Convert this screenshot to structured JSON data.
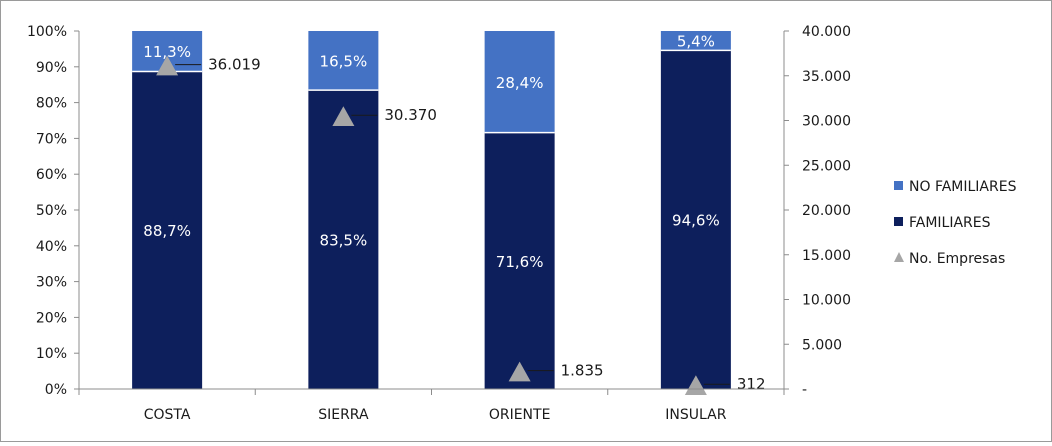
{
  "chart_data": {
    "type": "bar",
    "stacked": true,
    "categories": [
      "COSTA",
      "SIERRA",
      "ORIENTE",
      "INSULAR"
    ],
    "series": [
      {
        "name": "FAMILIARES",
        "values": [
          88.7,
          83.5,
          71.6,
          94.6
        ],
        "labels": [
          "88,7%",
          "83,5%",
          "71,6%",
          "94,6%"
        ],
        "color": "#0d1f5c",
        "axis": "left"
      },
      {
        "name": "NO FAMILIARES",
        "values": [
          11.3,
          16.5,
          28.4,
          5.4
        ],
        "labels": [
          "11,3%",
          "16,5%",
          "28,4%",
          "5,4%"
        ],
        "color": "#4472c4",
        "axis": "left"
      },
      {
        "name": "No. Empresas",
        "type": "scatter",
        "marker": "triangle",
        "values": [
          36019,
          30370,
          1835,
          312
        ],
        "labels": [
          "36.019",
          "30.370",
          "1.835",
          "312"
        ],
        "color": "#a6a6a6",
        "axis": "right"
      }
    ],
    "y_left": {
      "range": [
        0,
        100
      ],
      "ticks": [
        "0%",
        "10%",
        "20%",
        "30%",
        "40%",
        "50%",
        "60%",
        "70%",
        "80%",
        "90%",
        "100%"
      ]
    },
    "y_right": {
      "range": [
        0,
        40000
      ],
      "ticks": [
        "-",
        "5.000",
        "10.000",
        "15.000",
        "20.000",
        "25.000",
        "30.000",
        "35.000",
        "40.000"
      ]
    },
    "legend": {
      "position": "right",
      "order": [
        "NO FAMILIARES",
        "FAMILIARES",
        "No. Empresas"
      ]
    },
    "grid": false
  }
}
